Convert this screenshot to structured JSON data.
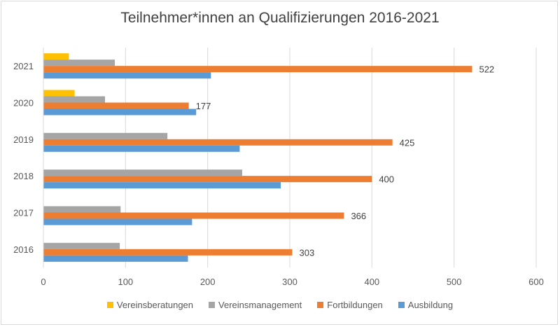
{
  "chart_data": {
    "type": "bar",
    "orientation": "horizontal",
    "title": "Teilnehmer*innen  an Qualifizierungen 2016-2021",
    "xlabel": "",
    "ylabel": "",
    "xlim": [
      0,
      600
    ],
    "xticks": [
      "0",
      "100",
      "200",
      "300",
      "400",
      "500",
      "600"
    ],
    "categories": [
      "2016",
      "2017",
      "2018",
      "2019",
      "2020",
      "2021"
    ],
    "series": [
      {
        "name": "Vereinsberatungen",
        "color": "#ffc000",
        "values": [
          0,
          0,
          0,
          0,
          38,
          31
        ]
      },
      {
        "name": "Vereinsmanagement",
        "color": "#a5a5a5",
        "values": [
          93,
          94,
          242,
          151,
          75,
          87
        ]
      },
      {
        "name": "Fortbildungen",
        "color": "#ed7d31",
        "values": [
          303,
          366,
          400,
          425,
          177,
          522
        ],
        "labels": [
          "303",
          "366",
          "400",
          "425",
          "177",
          "522"
        ]
      },
      {
        "name": "Ausbildung",
        "color": "#5b9bd5",
        "values": [
          176,
          181,
          289,
          239,
          186,
          204
        ]
      }
    ],
    "grid": true,
    "legend_position": "bottom"
  }
}
